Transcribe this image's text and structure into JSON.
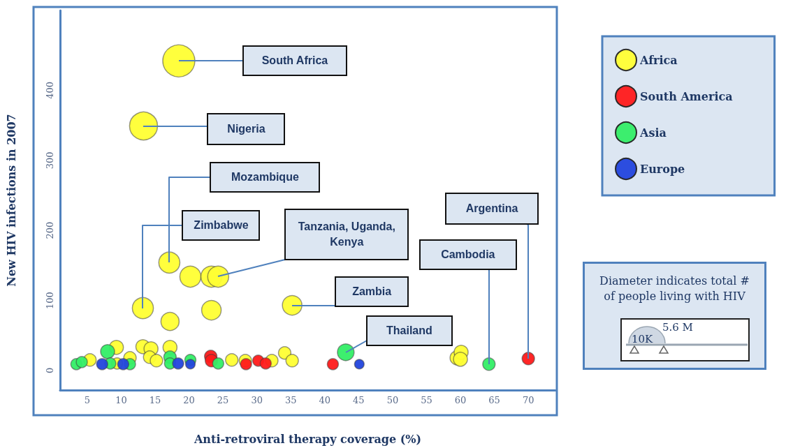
{
  "chart_data": {
    "type": "bubble",
    "xlabel": "Anti-retroviral therapy coverage (%)",
    "ylabel": "New HIV infections in 2007",
    "xlim": [
      1,
      74
    ],
    "xticks": [
      5,
      10,
      15,
      20,
      25,
      30,
      35,
      40,
      45,
      50,
      55,
      60,
      65,
      70
    ],
    "ylim": [
      -28,
      514
    ],
    "yticks": [
      0,
      100,
      200,
      300,
      400
    ],
    "grid": false,
    "legend": "top right",
    "marker": "circle",
    "series": [
      {
        "name": "Africa",
        "color": "#ffff33",
        "x": [
          18.5,
          13.3,
          17.1,
          13.2,
          20.2,
          23.3,
          24.3,
          17.2,
          23.3,
          35.2,
          59.5,
          60.1,
          60.0,
          5.4,
          9.3,
          9.4,
          11.3,
          13.2,
          14.4,
          14.2,
          15.2,
          17.2,
          26.3,
          28.3,
          32.2,
          34.1,
          35.2
        ],
        "values": [
          442,
          349,
          154,
          89,
          134,
          134,
          134,
          70,
          86,
          93,
          18,
          26,
          16,
          15,
          33,
          10,
          18,
          34,
          31,
          19,
          14,
          33,
          15,
          14,
          14,
          25,
          14
        ],
        "sizes": [
          1,
          0.76,
          0.43,
          0.43,
          0.43,
          0.43,
          0.43,
          0.32,
          0.37,
          0.37,
          0.19,
          0.19,
          0.19,
          0.15,
          0.19,
          0.12,
          0.15,
          0.19,
          0.19,
          0.15,
          0.15,
          0.19,
          0.15,
          0.15,
          0.15,
          0.15,
          0.15
        ]
      },
      {
        "name": "South America",
        "color": "#ff1a1a",
        "x": [
          70,
          41.2,
          23.2,
          23.3,
          28.4,
          30.2,
          31.3
        ],
        "values": [
          17,
          9,
          20,
          14,
          9,
          14,
          10
        ],
        "sizes": [
          0.15,
          0.12,
          0.15,
          0.15,
          0.12,
          0.12,
          0.12
        ]
      },
      {
        "name": "Asia",
        "color": "#33ee66",
        "x": [
          43.1,
          64.2,
          3.4,
          4.2,
          8.0,
          8.4,
          11.3,
          17.2,
          17.2,
          20.2,
          24.3
        ],
        "values": [
          26,
          9,
          9,
          12,
          27,
          10,
          9,
          19,
          10,
          15,
          10
        ],
        "sizes": [
          0.27,
          0.15,
          0.12,
          0.12,
          0.19,
          0.12,
          0.12,
          0.15,
          0.12,
          0.12,
          0.12
        ]
      },
      {
        "name": "Europe",
        "color": "#2244dd",
        "x": [
          45.1,
          7.2,
          10.3,
          18.4,
          20.2
        ],
        "values": [
          9,
          9,
          9,
          10,
          9
        ],
        "sizes": [
          0.09,
          0.12,
          0.12,
          0.12,
          0.09
        ]
      }
    ],
    "annotations": [
      {
        "text": "South Africa",
        "x": 18.5,
        "y": 442
      },
      {
        "text": "Nigeria",
        "x": 13.3,
        "y": 349
      },
      {
        "text": "Mozambique",
        "x": 17.1,
        "y": 154
      },
      {
        "text": "Zimbabwe",
        "x": 13.2,
        "y": 89
      },
      {
        "text": "Tanzania, Uganda, Kenya",
        "x": 24.3,
        "y": 134
      },
      {
        "text": "Zambia",
        "x": 35.2,
        "y": 93
      },
      {
        "text": "Thailand",
        "x": 43.1,
        "y": 26
      },
      {
        "text": "Cambodia",
        "x": 64.2,
        "y": 9
      },
      {
        "text": "Argentina",
        "x": 70,
        "y": 17
      },
      "Diameter indicates total # of people living with HIV",
      "10K",
      "5.6 M"
    ]
  }
}
